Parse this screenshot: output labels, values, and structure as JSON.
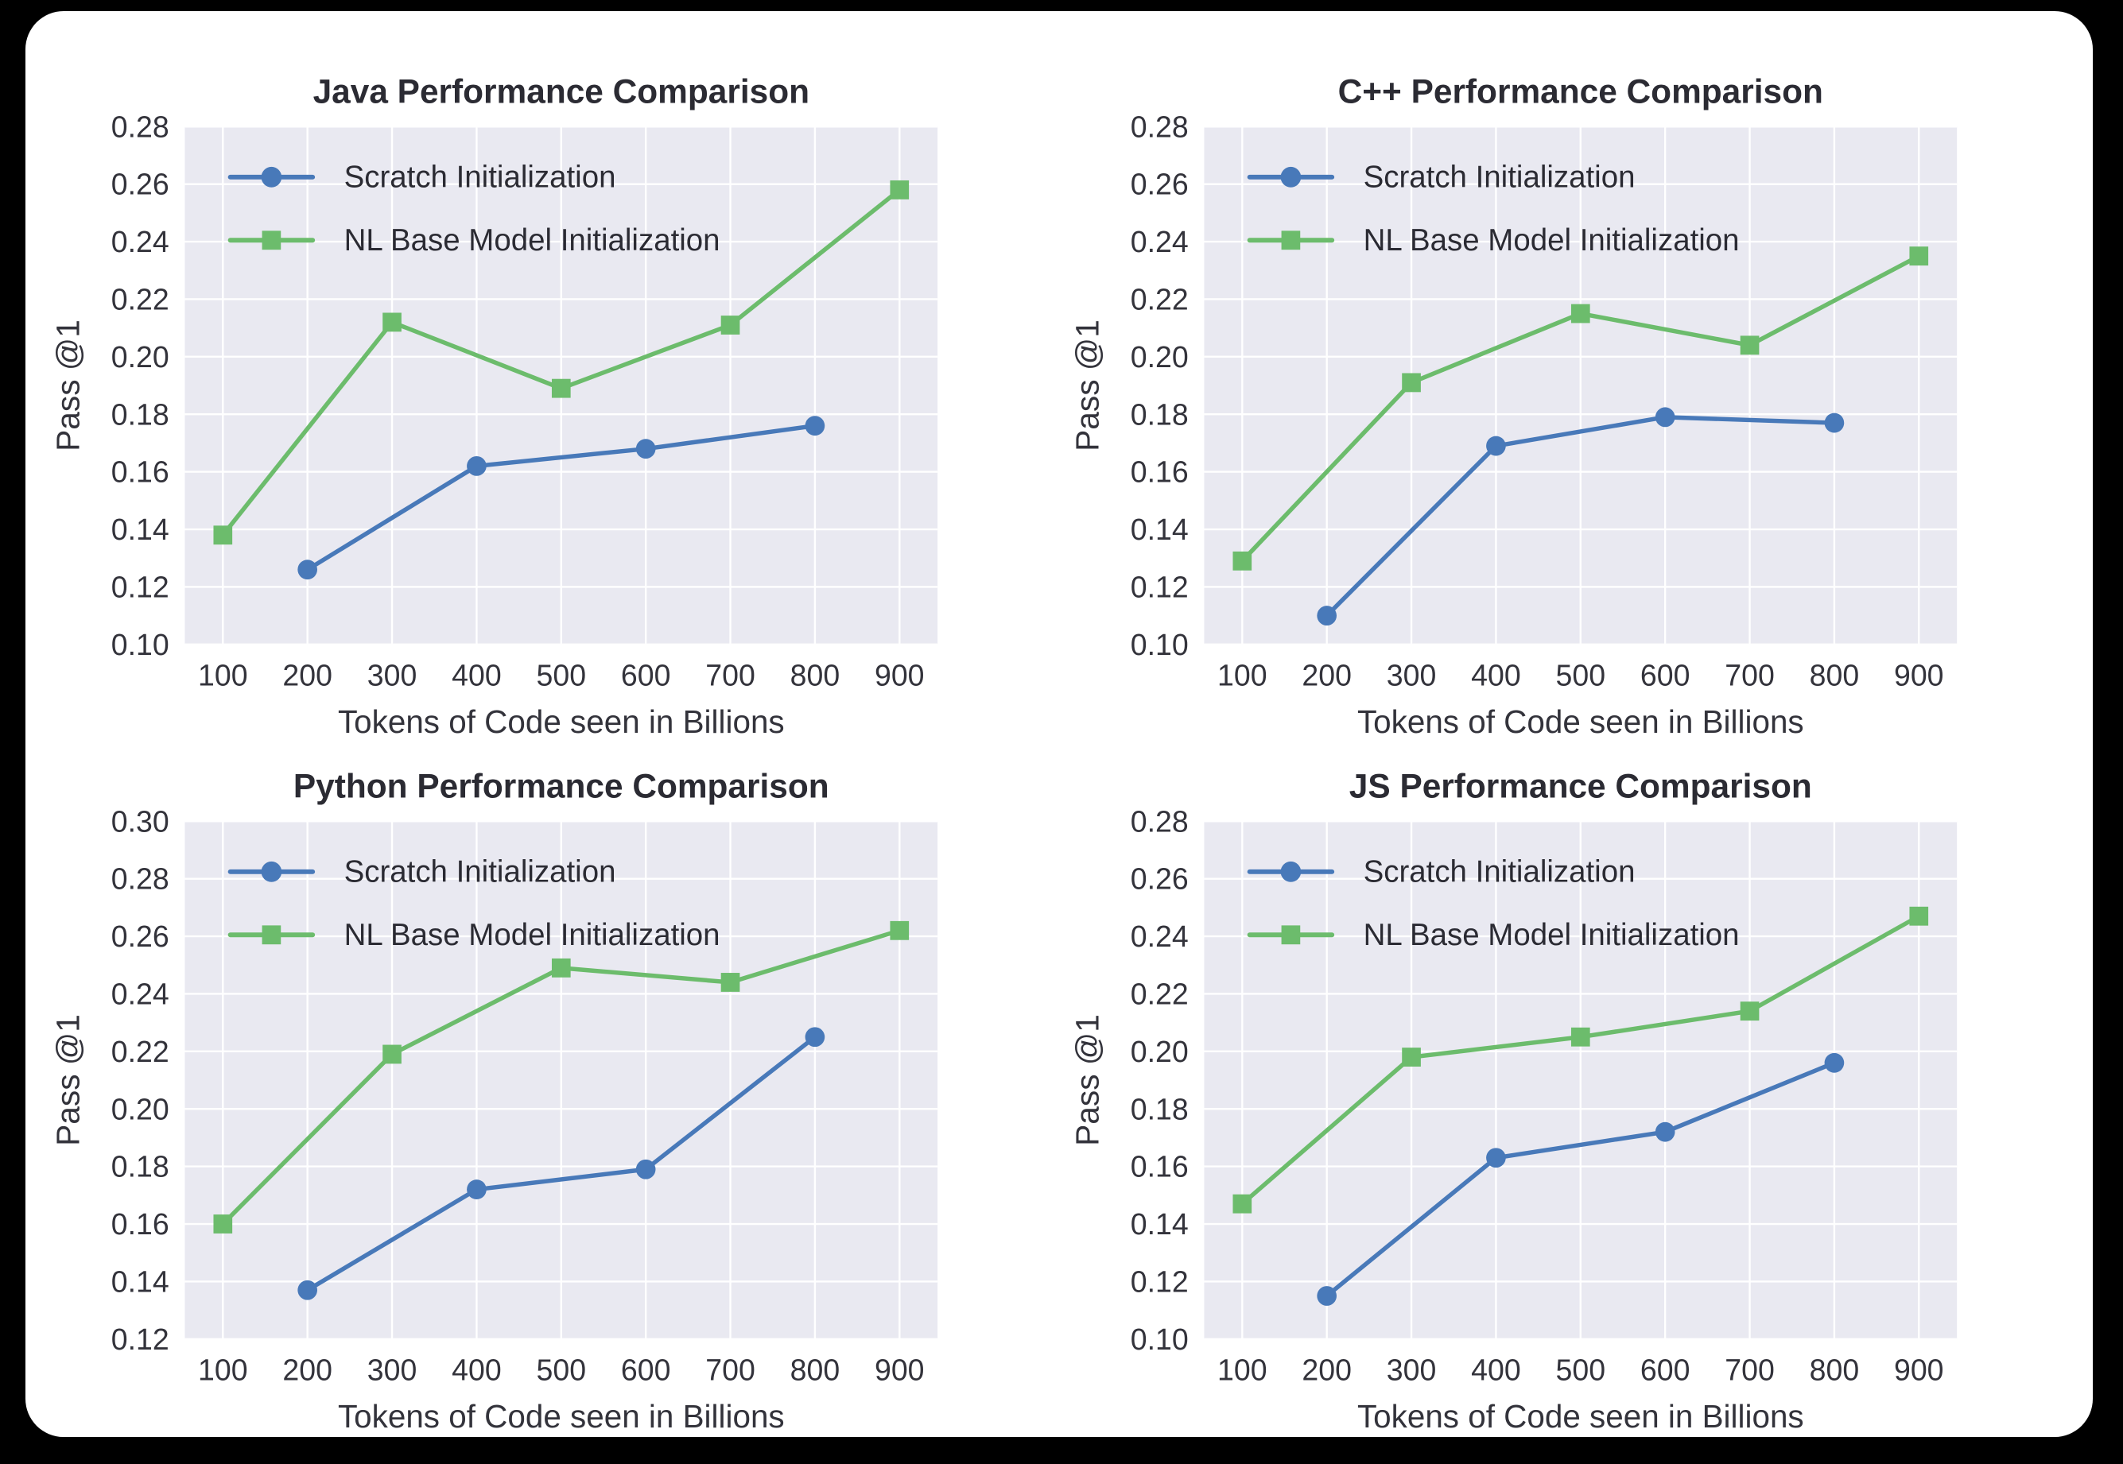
{
  "page": {
    "background_color": "#000000",
    "card_background_color": "#ffffff"
  },
  "styles": {
    "plot_background": "#e9e9f1",
    "grid_color": "#ffffff",
    "title_color": "#2b2b33",
    "tick_color": "#33333b",
    "label_color": "#33333b",
    "scratch_color": "#4879b9",
    "nl_color": "#6cbc6c"
  },
  "legend": {
    "scratch_label": "Scratch Initialization",
    "nl_label": "NL Base Model Initialization"
  },
  "chart_data": [
    {
      "type": "line",
      "title": "Java Performance Comparison",
      "xlabel": "Tokens of Code seen in Billions",
      "ylabel": "Pass @1",
      "xlim": [
        55,
        945
      ],
      "ylim": [
        0.1,
        0.28
      ],
      "xticks": [
        100,
        200,
        300,
        400,
        500,
        600,
        700,
        800,
        900
      ],
      "yticks": [
        0.1,
        0.12,
        0.14,
        0.16,
        0.18,
        0.2,
        0.22,
        0.24,
        0.26,
        0.28
      ],
      "grid": true,
      "legend_position": "upper left",
      "series": [
        {
          "name": "Scratch Initialization",
          "color_key": "scratch_color",
          "marker": "circle",
          "x": [
            200,
            400,
            600,
            800
          ],
          "y": [
            0.126,
            0.162,
            0.168,
            0.176
          ]
        },
        {
          "name": "NL Base Model Initialization",
          "color_key": "nl_color",
          "marker": "square",
          "x": [
            100,
            300,
            500,
            700,
            900
          ],
          "y": [
            0.138,
            0.212,
            0.189,
            0.211,
            0.258
          ]
        }
      ]
    },
    {
      "type": "line",
      "title": "C++ Performance Comparison",
      "xlabel": "Tokens of Code seen in Billions",
      "ylabel": "Pass @1",
      "xlim": [
        55,
        945
      ],
      "ylim": [
        0.1,
        0.28
      ],
      "xticks": [
        100,
        200,
        300,
        400,
        500,
        600,
        700,
        800,
        900
      ],
      "yticks": [
        0.1,
        0.12,
        0.14,
        0.16,
        0.18,
        0.2,
        0.22,
        0.24,
        0.26,
        0.28
      ],
      "grid": true,
      "legend_position": "upper left",
      "series": [
        {
          "name": "Scratch Initialization",
          "color_key": "scratch_color",
          "marker": "circle",
          "x": [
            200,
            400,
            600,
            800
          ],
          "y": [
            0.11,
            0.169,
            0.179,
            0.177
          ]
        },
        {
          "name": "NL Base Model Initialization",
          "color_key": "nl_color",
          "marker": "square",
          "x": [
            100,
            300,
            500,
            700,
            900
          ],
          "y": [
            0.129,
            0.191,
            0.215,
            0.204,
            0.235
          ]
        }
      ]
    },
    {
      "type": "line",
      "title": "Python Performance Comparison",
      "xlabel": "Tokens of Code seen in Billions",
      "ylabel": "Pass @1",
      "xlim": [
        55,
        945
      ],
      "ylim": [
        0.12,
        0.3
      ],
      "xticks": [
        100,
        200,
        300,
        400,
        500,
        600,
        700,
        800,
        900
      ],
      "yticks": [
        0.12,
        0.14,
        0.16,
        0.18,
        0.2,
        0.22,
        0.24,
        0.26,
        0.28,
        0.3
      ],
      "grid": true,
      "legend_position": "upper left",
      "series": [
        {
          "name": "Scratch Initialization",
          "color_key": "scratch_color",
          "marker": "circle",
          "x": [
            200,
            400,
            600,
            800
          ],
          "y": [
            0.137,
            0.172,
            0.179,
            0.225
          ]
        },
        {
          "name": "NL Base Model Initialization",
          "color_key": "nl_color",
          "marker": "square",
          "x": [
            100,
            300,
            500,
            700,
            900
          ],
          "y": [
            0.16,
            0.219,
            0.249,
            0.244,
            0.262
          ]
        }
      ]
    },
    {
      "type": "line",
      "title": "JS Performance Comparison",
      "xlabel": "Tokens of Code seen in Billions",
      "ylabel": "Pass @1",
      "xlim": [
        55,
        945
      ],
      "ylim": [
        0.1,
        0.28
      ],
      "xticks": [
        100,
        200,
        300,
        400,
        500,
        600,
        700,
        800,
        900
      ],
      "yticks": [
        0.1,
        0.12,
        0.14,
        0.16,
        0.18,
        0.2,
        0.22,
        0.24,
        0.26,
        0.28
      ],
      "grid": true,
      "legend_position": "upper left",
      "series": [
        {
          "name": "Scratch Initialization",
          "color_key": "scratch_color",
          "marker": "circle",
          "x": [
            200,
            400,
            600,
            800
          ],
          "y": [
            0.115,
            0.163,
            0.172,
            0.196
          ]
        },
        {
          "name": "NL Base Model Initialization",
          "color_key": "nl_color",
          "marker": "square",
          "x": [
            100,
            300,
            500,
            700,
            900
          ],
          "y": [
            0.147,
            0.198,
            0.205,
            0.214,
            0.247
          ]
        }
      ]
    }
  ]
}
